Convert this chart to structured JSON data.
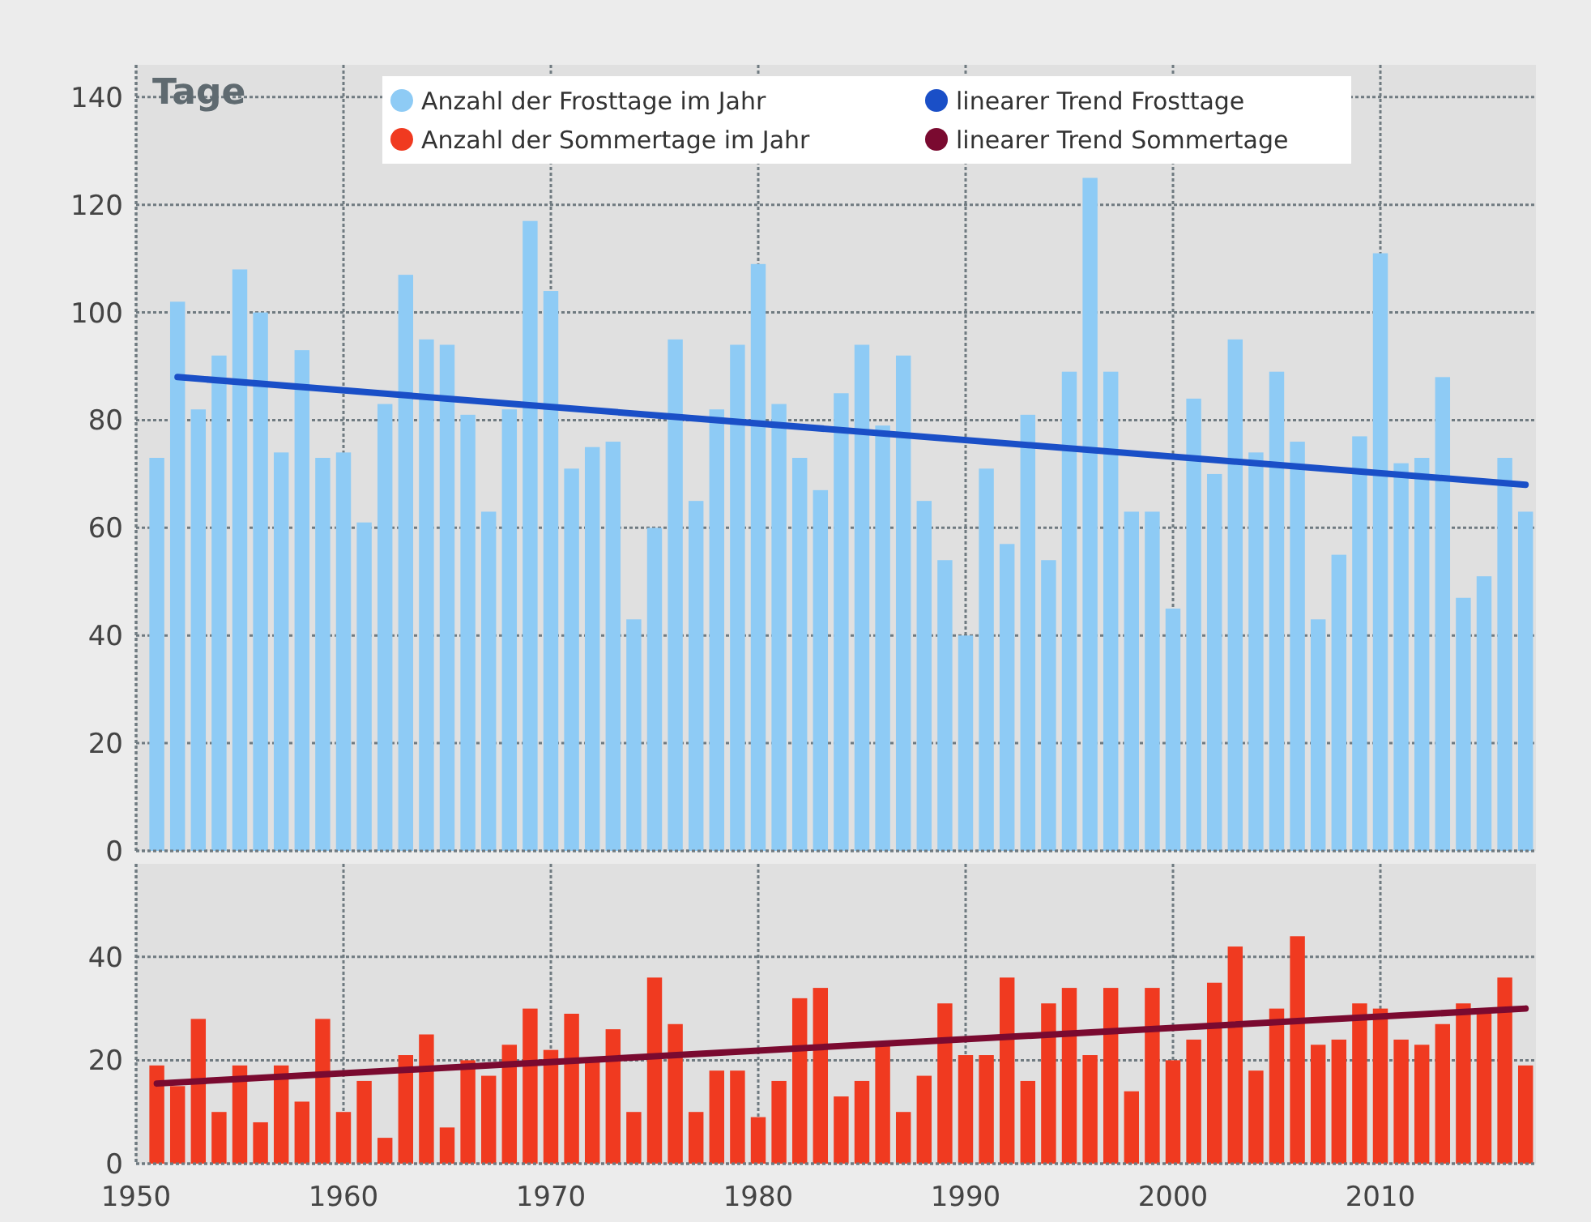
{
  "chart_data": [
    {
      "type": "bar",
      "ylabel": "Tage",
      "x": [
        1951,
        1952,
        1953,
        1954,
        1955,
        1956,
        1957,
        1958,
        1959,
        1960,
        1961,
        1962,
        1963,
        1964,
        1965,
        1966,
        1967,
        1968,
        1969,
        1970,
        1971,
        1972,
        1973,
        1974,
        1975,
        1976,
        1977,
        1978,
        1979,
        1980,
        1981,
        1982,
        1983,
        1984,
        1985,
        1986,
        1987,
        1988,
        1989,
        1990,
        1991,
        1992,
        1993,
        1994,
        1995,
        1996,
        1997,
        1998,
        1999,
        2000,
        2001,
        2002,
        2003,
        2004,
        2005,
        2006,
        2007,
        2008,
        2009,
        2010,
        2011,
        2012,
        2013,
        2014,
        2015,
        2016,
        2017
      ],
      "series": [
        {
          "name": "Anzahl der Frosttage im Jahr",
          "color": "#8ecbf5",
          "values": [
            73,
            102,
            82,
            92,
            108,
            100,
            74,
            93,
            73,
            74,
            61,
            83,
            107,
            95,
            94,
            81,
            63,
            82,
            117,
            104,
            71,
            75,
            76,
            43,
            60,
            95,
            65,
            82,
            94,
            109,
            83,
            73,
            67,
            85,
            94,
            79,
            92,
            65,
            54,
            40,
            71,
            57,
            81,
            54,
            89,
            125,
            89,
            63,
            63,
            45,
            84,
            70,
            95,
            74,
            89,
            76,
            43,
            55,
            77,
            111,
            72,
            73,
            88,
            47,
            51,
            73,
            63
          ]
        },
        {
          "name": "linearer Trend Frosttage",
          "type": "line",
          "color": "#1a4fc7",
          "x": [
            1952,
            2017
          ],
          "values": [
            88,
            68
          ]
        }
      ],
      "xlim": [
        1950,
        2017.5
      ],
      "xticks": [
        1950,
        1960,
        1970,
        1980,
        1990,
        2000,
        2010
      ],
      "ylim": [
        0,
        146
      ],
      "yticks": [
        0,
        20,
        40,
        60,
        80,
        100,
        120,
        140
      ],
      "grid": true,
      "legend": "top",
      "tick_labels": "y"
    },
    {
      "type": "bar",
      "x": [
        1951,
        1952,
        1953,
        1954,
        1955,
        1956,
        1957,
        1958,
        1959,
        1960,
        1961,
        1962,
        1963,
        1964,
        1965,
        1966,
        1967,
        1968,
        1969,
        1970,
        1971,
        1972,
        1973,
        1974,
        1975,
        1976,
        1977,
        1978,
        1979,
        1980,
        1981,
        1982,
        1983,
        1984,
        1985,
        1986,
        1987,
        1988,
        1989,
        1990,
        1991,
        1992,
        1993,
        1994,
        1995,
        1996,
        1997,
        1998,
        1999,
        2000,
        2001,
        2002,
        2003,
        2004,
        2005,
        2006,
        2007,
        2008,
        2009,
        2010,
        2011,
        2012,
        2013,
        2014,
        2015,
        2016,
        2017
      ],
      "series": [
        {
          "name": "Anzahl der Sommertage im Jahr",
          "color": "#f03a20",
          "values": [
            19,
            15,
            28,
            10,
            19,
            8,
            19,
            12,
            28,
            10,
            16,
            5,
            21,
            25,
            7,
            20,
            17,
            23,
            30,
            22,
            29,
            20,
            26,
            10,
            36,
            27,
            10,
            18,
            18,
            9,
            16,
            32,
            34,
            13,
            16,
            23,
            10,
            17,
            31,
            21,
            21,
            36,
            16,
            31,
            34,
            21,
            34,
            14,
            34,
            20,
            24,
            35,
            42,
            18,
            30,
            44,
            23,
            24,
            31,
            30,
            24,
            23,
            27,
            31,
            29,
            36,
            19
          ]
        },
        {
          "name": "linearer Trend Sommertage",
          "type": "line",
          "color": "#7a0a30",
          "x": [
            1951,
            2017
          ],
          "values": [
            15.5,
            30
          ]
        }
      ],
      "xlim": [
        1950,
        2017.5
      ],
      "xticks": [
        1950,
        1960,
        1970,
        1980,
        1990,
        2000,
        2010
      ],
      "ylim": [
        0,
        58
      ],
      "yticks": [
        0,
        20,
        40
      ],
      "grid": true,
      "legend": "top"
    }
  ]
}
